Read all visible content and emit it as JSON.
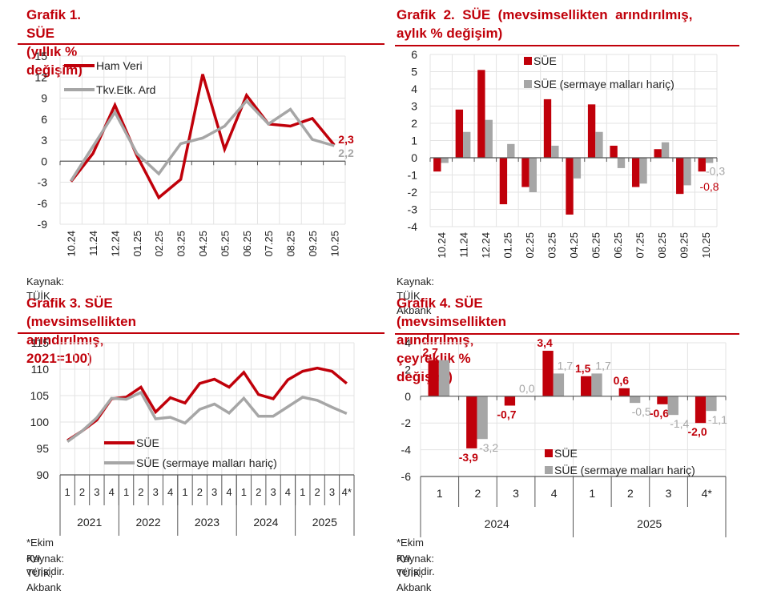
{
  "colors": {
    "red": "#c0000a",
    "grey": "#a6a6a6",
    "title": "#c0000a",
    "grid": "#e3e3e3"
  },
  "charts": [
    {
      "id": "g1",
      "title": "Grafik 1. SÜE (yıllık % değişim)",
      "source": "Kaynak: TÜİK",
      "chart_data": {
        "type": "line",
        "title": "Grafik 1. SÜE (yıllık % değişim)",
        "categories": [
          "10.24",
          "11.24",
          "12.24",
          "01.25",
          "02.25",
          "03.25",
          "04.25",
          "05.25",
          "06.25",
          "07.25",
          "08.25",
          "09.25",
          "10.25"
        ],
        "series": [
          {
            "name": "Ham Veri",
            "color": "#c0000a",
            "values": [
              -2.9,
              1.1,
              8.0,
              0.8,
              -5.2,
              -2.6,
              12.4,
              1.7,
              9.4,
              5.3,
              5.0,
              6.1,
              2.3
            ],
            "last_label": "2,3"
          },
          {
            "name": "Tkv.Etk. Ard",
            "color": "#a6a6a6",
            "values": [
              -2.8,
              2.1,
              7.0,
              1.1,
              -1.8,
              2.5,
              3.3,
              5.0,
              8.6,
              5.3,
              7.4,
              3.1,
              2.2
            ],
            "last_label": "2,2"
          }
        ],
        "yticks": [
          "15",
          "12",
          "9",
          "6",
          "3",
          "0",
          "-3",
          "-6",
          "-9"
        ],
        "ylim": [
          -9,
          15
        ],
        "xlabel": "",
        "ylabel": "",
        "grid": true,
        "legend": "top-left"
      }
    },
    {
      "id": "g2",
      "title": "Grafik 2. SÜE (mevsimsellikten arındırılmış, aylık % değişim)",
      "title_line1": "Grafik  2.  SÜE  (mevsimsellikten  arındırılmış,",
      "title_line2": "aylık % değişim)",
      "source": "Kaynak: TÜİK, Akbank",
      "chart_data": {
        "type": "bar",
        "title": "Grafik 2. SÜE (mevsimsellikten arındırılmış, aylık % değişim)",
        "categories": [
          "10.24",
          "11.24",
          "12.24",
          "01.25",
          "02.25",
          "03.25",
          "04.25",
          "05.25",
          "06.25",
          "07.25",
          "08.25",
          "09.25",
          "10.25"
        ],
        "series": [
          {
            "name": "SÜE",
            "color": "#c0000a",
            "values": [
              -0.8,
              2.8,
              5.1,
              -2.7,
              -1.7,
              3.4,
              -3.3,
              3.1,
              0.7,
              -1.7,
              0.5,
              -2.1,
              -0.8
            ],
            "last_label": "-0,8"
          },
          {
            "name": "SÜE (sermaye malları hariç)",
            "color": "#a6a6a6",
            "values": [
              -0.3,
              1.5,
              2.2,
              0.8,
              -2.0,
              0.7,
              -1.2,
              1.5,
              -0.6,
              -1.5,
              0.9,
              -1.6,
              -0.3
            ],
            "last_label": "-0,3"
          }
        ],
        "yticks": [
          "6",
          "5",
          "4",
          "3",
          "2",
          "1",
          "0",
          "-1",
          "-2",
          "-3",
          "-4"
        ],
        "ylim": [
          -4,
          6
        ],
        "xlabel": "",
        "ylabel": "",
        "grid": true,
        "legend": "top-right"
      }
    },
    {
      "id": "g3",
      "title": "Grafik 3. SÜE (mevsimsellikten arındırılmış, 2021=100)",
      "title_line1": "Grafik 3. SÜE (mevsimsellikten arındırılmış,",
      "title_line2": "2021=100)",
      "footnote": "*Ekim ayı verisidir.",
      "source": "Kaynak: TÜİK, Akbank",
      "chart_data": {
        "type": "line",
        "title": "Grafik 3. SÜE (mevsimsellikten arındırılmış, 2021=100)",
        "categories": [
          "1",
          "2",
          "3",
          "4",
          "1",
          "2",
          "3",
          "4",
          "1",
          "2",
          "3",
          "4",
          "1",
          "2",
          "3",
          "4",
          "1",
          "2",
          "3",
          "4*"
        ],
        "groups": [
          {
            "label": "2021",
            "count": 4
          },
          {
            "label": "2022",
            "count": 4
          },
          {
            "label": "2023",
            "count": 4
          },
          {
            "label": "2024",
            "count": 4
          },
          {
            "label": "2025",
            "count": 4
          }
        ],
        "series": [
          {
            "name": "SÜE",
            "color": "#c0000a",
            "values": [
              96.5,
              98.3,
              100.4,
              104.4,
              104.7,
              106.6,
              101.9,
              104.6,
              103.6,
              107.3,
              108.1,
              106.6,
              109.4,
              105.2,
              104.4,
              108.0,
              109.6,
              110.2,
              109.6,
              107.3
            ]
          },
          {
            "name": "SÜE (sermaye malları hariç)",
            "color": "#a6a6a6",
            "values": [
              96.3,
              98.3,
              100.8,
              104.5,
              104.3,
              105.6,
              100.6,
              100.9,
              99.8,
              102.4,
              103.4,
              101.7,
              104.5,
              101.1,
              101.1,
              102.9,
              104.7,
              104.1,
              102.8,
              101.6
            ]
          }
        ],
        "yticks": [
          "115",
          "110",
          "105",
          "100",
          "95",
          "90"
        ],
        "ylim": [
          90,
          115
        ],
        "xlabel": "",
        "ylabel": "",
        "grid": true,
        "legend": "bottom-left"
      }
    },
    {
      "id": "g4",
      "title": "Grafik 4. SÜE (mevsimsellikten arındırılmış, çeyreklik % değişim)",
      "title_line1": "Grafik 4. SÜE (mevsimsellikten arındırılmış,",
      "title_line2": "çeyreklik % değişim)",
      "footnote": "*Ekim ayı verisidir.",
      "source": "Kaynak: TÜİK, Akbank",
      "chart_data": {
        "type": "bar",
        "title": "Grafik 4. SÜE (mevsimsellikten arındırılmış, çeyreklik % değişim)",
        "categories": [
          "1",
          "2",
          "3",
          "4",
          "1",
          "2",
          "3",
          "4*"
        ],
        "groups": [
          {
            "label": "2024",
            "count": 4
          },
          {
            "label": "2025",
            "count": 4
          }
        ],
        "series": [
          {
            "name": "SÜE",
            "color": "#c0000a",
            "values": [
              2.7,
              -3.9,
              -0.7,
              3.4,
              1.5,
              0.6,
              -0.6,
              -2.0
            ],
            "labels": [
              "2,7",
              "-3,9",
              "-0,7",
              "3,4",
              "1,5",
              "0,6",
              "-0,6",
              "-2,0"
            ]
          },
          {
            "name": "SÜE (sermaye malları hariç)",
            "color": "#a6a6a6",
            "values": [
              2.7,
              -3.2,
              0.0,
              1.7,
              1.7,
              -0.5,
              -1.4,
              -1.1
            ],
            "labels": [
              "",
              "-3,2",
              "0,0",
              "1,7",
              "1,7",
              "-0,5",
              "-1,4",
              "-1,1"
            ]
          }
        ],
        "yticks": [
          "4",
          "2",
          "0",
          "-2",
          "-4",
          "-6"
        ],
        "ylim": [
          -6,
          4
        ],
        "xlabel": "",
        "ylabel": "",
        "grid": true,
        "legend": "bottom-right"
      }
    }
  ]
}
